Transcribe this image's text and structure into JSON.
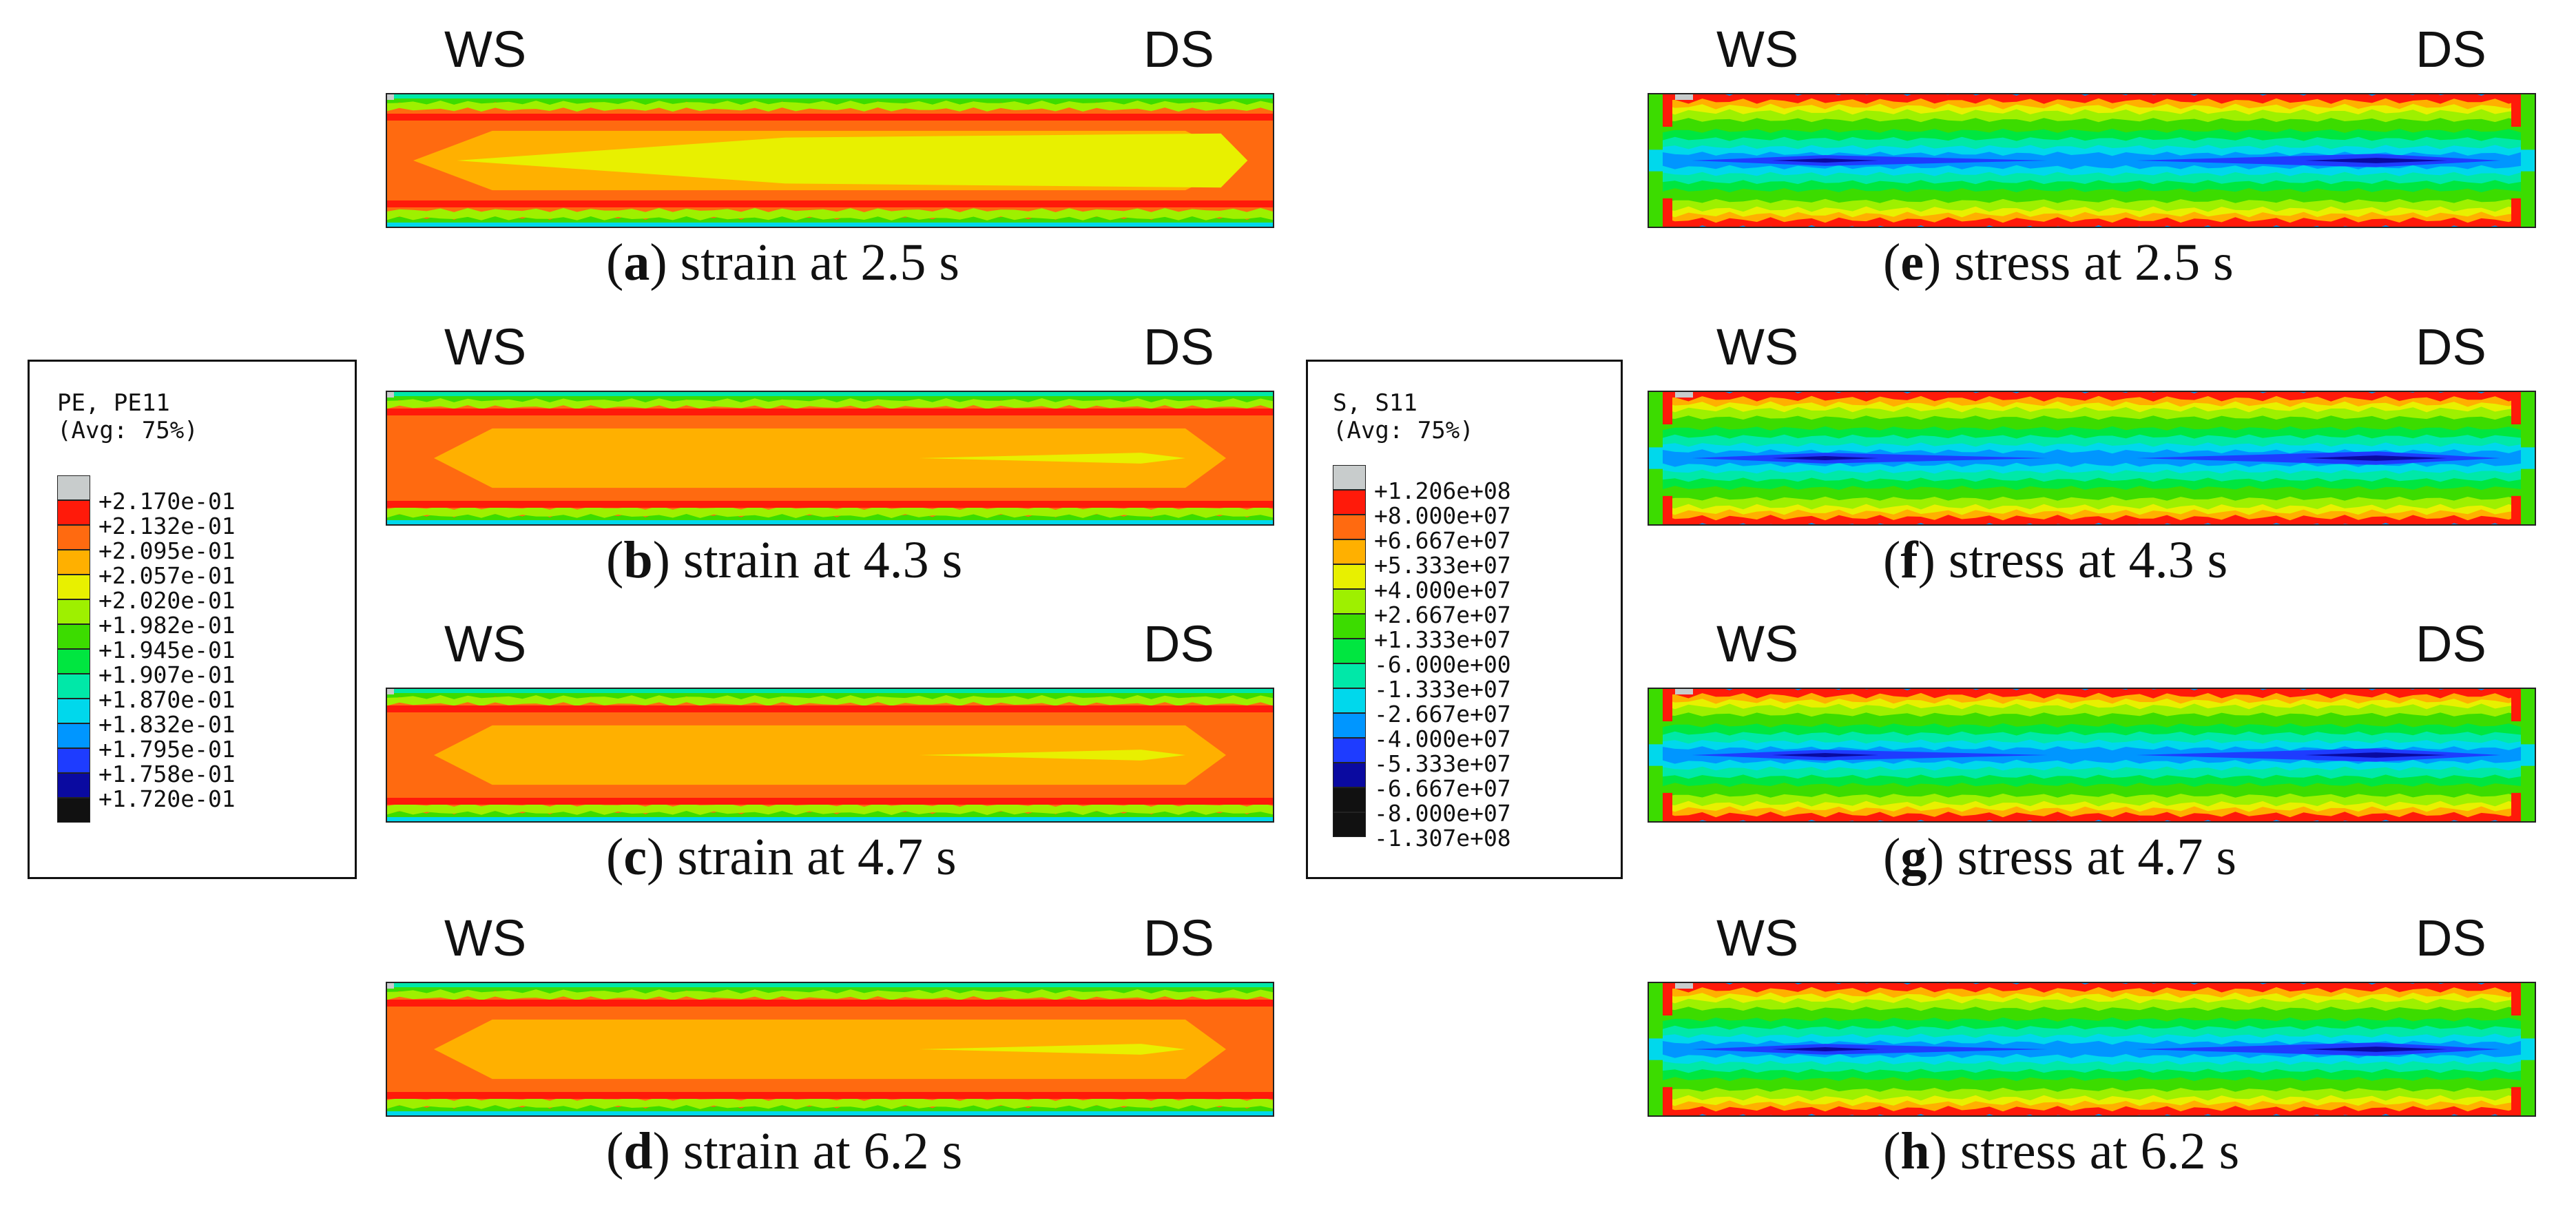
{
  "labels": {
    "left": "WS",
    "right": "DS"
  },
  "strain_legend": {
    "title_line1": "PE, PE11",
    "title_line2": "(Avg: 75%)",
    "entries": [
      {
        "value": "+2.170e-01",
        "color": "#c8cccc"
      },
      {
        "value": "+2.132e-01",
        "color": "#ff1a0a"
      },
      {
        "value": "+2.095e-01",
        "color": "#ff6a10"
      },
      {
        "value": "+2.057e-01",
        "color": "#ffb000"
      },
      {
        "value": "+2.020e-01",
        "color": "#e8f000"
      },
      {
        "value": "+1.982e-01",
        "color": "#9ef000"
      },
      {
        "value": "+1.945e-01",
        "color": "#3cdc00"
      },
      {
        "value": "+1.907e-01",
        "color": "#00e640"
      },
      {
        "value": "+1.870e-01",
        "color": "#00e8a8"
      },
      {
        "value": "+1.832e-01",
        "color": "#00d8ec"
      },
      {
        "value": "+1.795e-01",
        "color": "#0096ff"
      },
      {
        "value": "+1.758e-01",
        "color": "#1e3cff"
      },
      {
        "value": "+1.720e-01",
        "color": "#0a0aa0"
      },
      {
        "value": "",
        "color": "#111111"
      }
    ]
  },
  "stress_legend": {
    "title_line1": "S, S11",
    "title_line2": "(Avg: 75%)",
    "entries": [
      {
        "value": "+1.206e+08",
        "color": "#c8cccc"
      },
      {
        "value": "+8.000e+07",
        "color": "#ff1a0a"
      },
      {
        "value": "+6.667e+07",
        "color": "#ff6a10"
      },
      {
        "value": "+5.333e+07",
        "color": "#ffb000"
      },
      {
        "value": "+4.000e+07",
        "color": "#e8f000"
      },
      {
        "value": "+2.667e+07",
        "color": "#9ef000"
      },
      {
        "value": "+1.333e+07",
        "color": "#3cdc00"
      },
      {
        "value": "-6.000e+00",
        "color": "#00e640"
      },
      {
        "value": "-1.333e+07",
        "color": "#00e8a8"
      },
      {
        "value": "-2.667e+07",
        "color": "#00d8ec"
      },
      {
        "value": "-4.000e+07",
        "color": "#0096ff"
      },
      {
        "value": "-5.333e+07",
        "color": "#1e3cff"
      },
      {
        "value": "-6.667e+07",
        "color": "#0a0aa0"
      },
      {
        "value": "-8.000e+07",
        "color": "#111111"
      },
      {
        "value": "-1.307e+08",
        "color": "#111111"
      }
    ]
  },
  "panels": [
    {
      "letter": "a",
      "caption": " strain at 2.5 s",
      "kind": "strain"
    },
    {
      "letter": "b",
      "caption": " strain at 4.3 s",
      "kind": "strain"
    },
    {
      "letter": "c",
      "caption": " strain at 4.7 s",
      "kind": "strain"
    },
    {
      "letter": "d",
      "caption": " strain at 6.2 s",
      "kind": "strain"
    },
    {
      "letter": "e",
      "caption": " stress at 2.5 s",
      "kind": "stress"
    },
    {
      "letter": "f",
      "caption": " stress at 4.3 s",
      "kind": "stress"
    },
    {
      "letter": "g",
      "caption": " stress at 4.7 s",
      "kind": "stress"
    },
    {
      "letter": "h",
      "caption": " stress at 6.2 s",
      "kind": "stress"
    }
  ],
  "paren_open": "(",
  "paren_close": ")"
}
